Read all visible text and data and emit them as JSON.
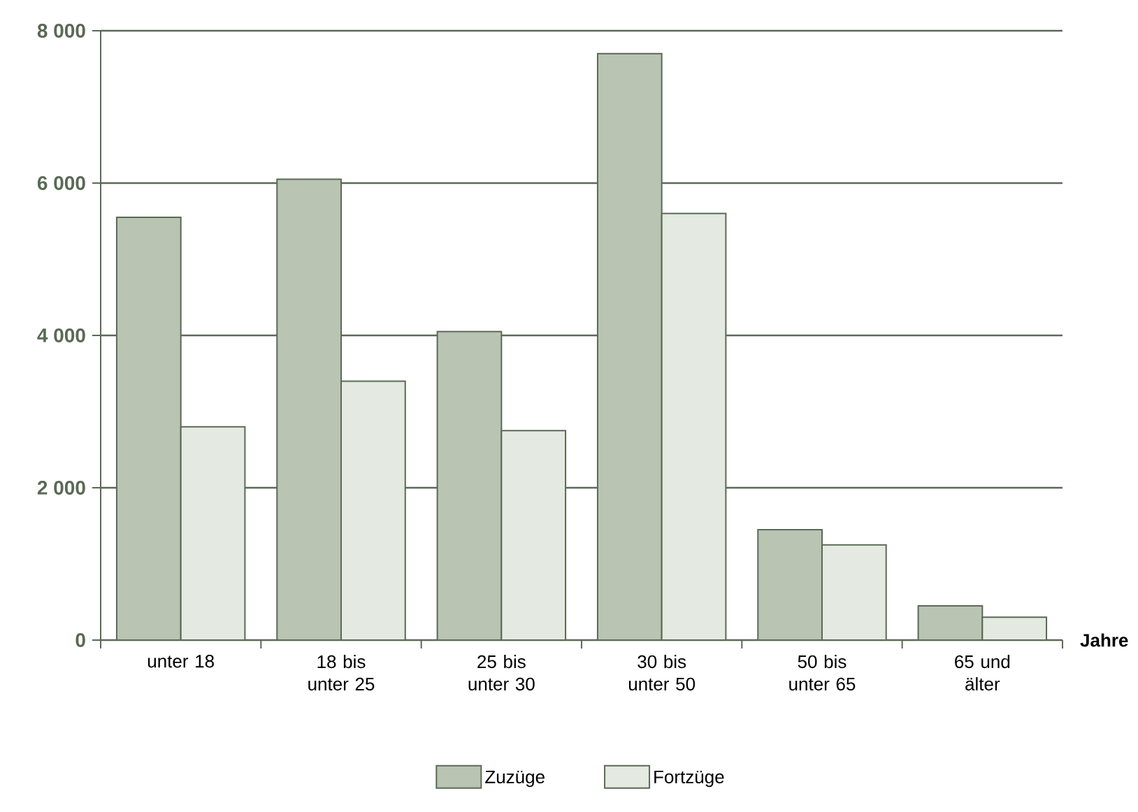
{
  "chart_data": {
    "type": "bar",
    "xlabel": "Jahre",
    "categories": [
      "unter 18",
      "18 bis unter 25",
      "25 bis unter 30",
      "30 bis unter 50",
      "50 bis unter 65",
      "65 und älter"
    ],
    "series": [
      {
        "name": "Zuzüge",
        "color": "#b9c4b3",
        "values": [
          5550,
          6050,
          4050,
          7700,
          1450,
          450
        ]
      },
      {
        "name": "Fortzüge",
        "color": "#e4e9e1",
        "values": [
          2800,
          3400,
          2750,
          5600,
          1250,
          300
        ]
      }
    ],
    "ylim": [
      0,
      8000
    ],
    "yticks": [
      0,
      {
        "value": 2000,
        "label": "2 000"
      },
      {
        "value": 4000,
        "label": "4 000"
      },
      {
        "value": 6000,
        "label": "6 000"
      },
      {
        "value": 8000,
        "label": "8 000"
      }
    ],
    "grid": "y",
    "legend": "bottom"
  }
}
